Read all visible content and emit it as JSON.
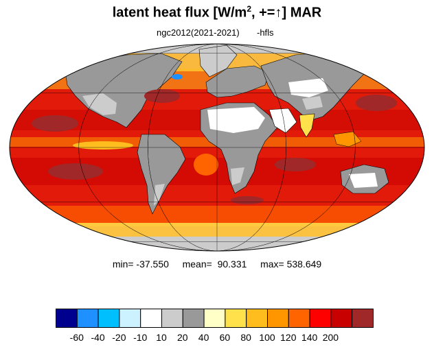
{
  "header": {
    "title_main": "latent heat flux [W/m",
    "title_sup": "2",
    "title_tail": ", +=",
    "title_arrow": "↑",
    "title_end": "]  MAR",
    "subtitle_left": "ngc2012(2021-2021)",
    "subtitle_right": "-hfls"
  },
  "stats": {
    "min": "min= -37.550",
    "mean": "mean=  90.331",
    "max": "max= 538.649"
  },
  "colorbar": {
    "colors": [
      "#00008f",
      "#1e90ff",
      "#00bfff",
      "#cdf2ff",
      "#ffffff",
      "#cccccc",
      "#999999",
      "#ffffc8",
      "#ffe14b",
      "#ffbe1e",
      "#ff9600",
      "#ff6400",
      "#ff0000",
      "#c80000",
      "#a02828"
    ],
    "labels": [
      "-60",
      "-40",
      "-20",
      "-10",
      "10",
      "20",
      "40",
      "60",
      "80",
      "100",
      "120",
      "140",
      "200"
    ]
  },
  "map": {
    "projection": "mollweide",
    "ocean_color": "#e11a0a",
    "land_low_color": "#999999",
    "land_mid_color": "#cccccc",
    "land_dry_color": "#ffffff",
    "outline_color": "#000000"
  }
}
